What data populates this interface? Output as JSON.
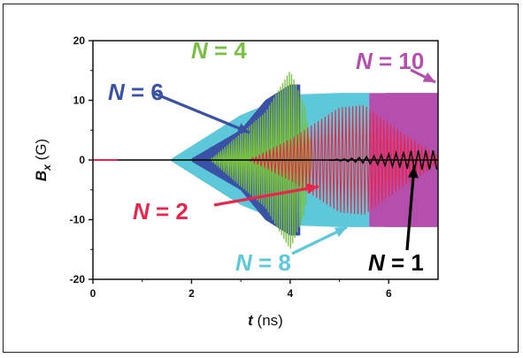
{
  "chart_data": {
    "type": "line",
    "xlabel": {
      "var": "t",
      "unit": " (ns)"
    },
    "ylabel": {
      "var": "B",
      "sub": "x",
      "unit": " (G)"
    },
    "xlim": [
      0,
      7
    ],
    "ylim": [
      -20,
      20
    ],
    "x_ticks": [
      0,
      2,
      4,
      6
    ],
    "y_ticks": [
      -20,
      -10,
      0,
      10,
      20
    ],
    "x_tick_labels": [
      "0",
      "2",
      "4",
      "6"
    ],
    "y_tick_labels": [
      "-20",
      "-10",
      "0",
      "10",
      "20"
    ],
    "grid": false,
    "legend": "none",
    "series": [
      {
        "label_var": "N",
        "label_value": " = 10",
        "color": "#b54fae",
        "onset": 2.2,
        "rise": 0.9,
        "amplitude": 11.2,
        "end": 7.0,
        "style": "band",
        "points": [
          [
            2.0,
            0.2
          ],
          [
            3.0,
            5.5
          ],
          [
            4.0,
            10.4
          ],
          [
            5.0,
            11.1
          ],
          [
            6.0,
            11.2
          ],
          [
            7.0,
            11.2
          ]
        ]
      },
      {
        "label_var": "N",
        "label_value": " = 8",
        "color": "#5cc8da",
        "onset": 1.6,
        "rise": 0.8,
        "amplitude": 11.2,
        "end": 5.6,
        "style": "band",
        "points": [
          [
            1.6,
            0.2
          ],
          [
            3.0,
            7.5
          ],
          [
            4.0,
            10.9
          ],
          [
            5.0,
            11.2
          ],
          [
            5.6,
            11.2
          ]
        ]
      },
      {
        "label_var": "N",
        "label_value": " = 6",
        "color": "#3a52a6",
        "onset": 2.0,
        "rise": 0.55,
        "amplitude": 12.6,
        "end": 4.2,
        "style": "band",
        "points": [
          [
            2.0,
            0.2
          ],
          [
            3.0,
            5.0
          ],
          [
            3.5,
            10.0
          ],
          [
            4.0,
            12.6
          ],
          [
            4.2,
            12.6
          ]
        ]
      },
      {
        "label_var": "N",
        "label_value": " = 4",
        "color": "#79c142",
        "onset": 2.4,
        "rise": 0.45,
        "amplitude": 15.0,
        "end": 4.45,
        "style": "osc",
        "points": [
          [
            2.4,
            0.2
          ],
          [
            3.5,
            8.0
          ],
          [
            4.0,
            15.0
          ],
          [
            4.3,
            9.0
          ],
          [
            4.45,
            0.5
          ]
        ]
      },
      {
        "label_var": "N",
        "label_value": " = 2",
        "color": "#e8264c",
        "onset": 3.2,
        "rise": 0.85,
        "amplitude": 9.2,
        "end": 7.0,
        "style": "osc",
        "points": [
          [
            3.2,
            0.2
          ],
          [
            4.0,
            3.5
          ],
          [
            5.0,
            8.8
          ],
          [
            5.5,
            9.2
          ],
          [
            6.2,
            5.0
          ],
          [
            7.0,
            0.7
          ]
        ]
      },
      {
        "label_var": "N",
        "label_value": " = 1",
        "color": "#000000",
        "onset": 4.8,
        "rise": 0.9,
        "amplitude": 1.6,
        "end": 7.0,
        "style": "osc",
        "points": [
          [
            4.8,
            0.0
          ],
          [
            5.5,
            0.5
          ],
          [
            6.0,
            1.0
          ],
          [
            6.5,
            1.6
          ],
          [
            7.0,
            1.6
          ]
        ]
      }
    ]
  },
  "annotations": [
    {
      "var": "N",
      "text": " = 4",
      "color": "#79c142"
    },
    {
      "var": "N",
      "text": " = 6",
      "color": "#3a52a6"
    },
    {
      "var": "N",
      "text": " = 10",
      "color": "#b54fae"
    },
    {
      "var": "N",
      "text": " = 2",
      "color": "#e8264c"
    },
    {
      "var": "N",
      "text": " = 8",
      "color": "#5cc8da"
    },
    {
      "var": "N",
      "text": " = 1",
      "color": "#000000"
    }
  ]
}
